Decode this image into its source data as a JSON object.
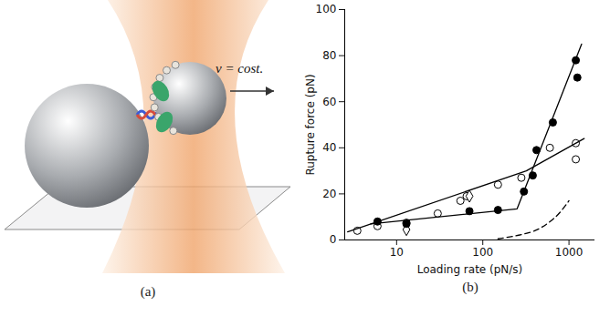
{
  "diagram": {
    "panel_label": "(a)",
    "annotation": "v = cost."
  },
  "chart_data": {
    "type": "scatter",
    "panel_label": "(b)",
    "x_label": "Loading rate (pN/s)",
    "y_label": "Rupture force (pN)",
    "log": "x",
    "xlim": [
      2.5,
      2000
    ],
    "xticks": [
      10,
      100,
      1000
    ],
    "ylim": [
      0,
      100
    ],
    "yticks": [
      0,
      20,
      40,
      60,
      80,
      100
    ],
    "series": [
      {
        "type": "scatter",
        "marker": "open_circle",
        "color": "#000000",
        "x": [
          3.5,
          6,
          13,
          30,
          55,
          65,
          150,
          280,
          600,
          1200,
          1200
        ],
        "values": [
          4,
          6,
          7.5,
          11.5,
          17,
          19,
          24,
          27,
          40,
          42,
          35
        ]
      },
      {
        "type": "scatter",
        "marker": "open_diamond",
        "color": "#000000",
        "x": [
          13,
          70
        ],
        "values": [
          4.5,
          19
        ]
      },
      {
        "type": "scatter",
        "marker": "filled_circle",
        "color": "#000000",
        "x": [
          6,
          13,
          70,
          150,
          300,
          380,
          420,
          650,
          1200,
          1250
        ],
        "values": [
          8,
          7,
          12.5,
          13,
          21,
          28,
          39,
          51,
          78,
          70.5
        ]
      },
      {
        "type": "line",
        "line_style": "solid",
        "color": "#000000",
        "x": [
          2.7,
          320,
          1500
        ],
        "values": [
          3.5,
          30,
          44
        ]
      },
      {
        "type": "line",
        "line_style": "solid",
        "color": "#000000",
        "x": [
          5,
          250,
          1400
        ],
        "values": [
          7,
          13.5,
          85
        ]
      },
      {
        "type": "line",
        "line_style": "dashed",
        "color": "#000000",
        "x": [
          150,
          400,
          700,
          1000
        ],
        "values": [
          0.5,
          4,
          10,
          17
        ]
      }
    ]
  }
}
